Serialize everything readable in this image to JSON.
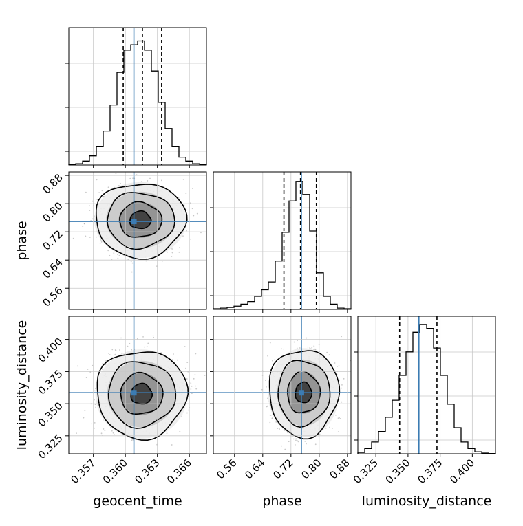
{
  "colors": {
    "truth": "#3c7cb3",
    "histogram": "#000000",
    "quantile": "#000000",
    "grid": "#c8c8c8",
    "points": "#8a8a8a",
    "density_dark": "#222222"
  },
  "chart_data": {
    "type": "corner",
    "parameters": [
      "geocent_time",
      "phase",
      "luminosity_distance"
    ],
    "axis_labels": {
      "geocent_time": "geocent_time",
      "phase": "phase",
      "luminosity_distance": "luminosity_distance"
    },
    "ranges": {
      "geocent_time": [
        0.3547,
        0.3676
      ],
      "phase": [
        0.5,
        0.89
      ],
      "luminosity_distance": [
        0.311,
        0.418
      ]
    },
    "ticks": {
      "geocent_time": [
        "0.357",
        "0.360",
        "0.363",
        "0.366"
      ],
      "phase": [
        "0.56",
        "0.64",
        "0.72",
        "0.80",
        "0.88"
      ],
      "luminosity_distance": [
        "0.325",
        "0.350",
        "0.375",
        "0.400"
      ]
    },
    "truths": {
      "geocent_time": 0.3608,
      "phase": 0.7495,
      "luminosity_distance": 0.3585
    },
    "quantiles": {
      "geocent_time": [
        0.3598,
        0.3616,
        0.3634
      ],
      "phase": [
        0.7,
        0.747,
        0.792
      ],
      "luminosity_distance": [
        0.3435,
        0.358,
        0.3725
      ]
    },
    "histograms": {
      "geocent_time": {
        "edges": [
          0.3547,
          0.355345,
          0.35599,
          0.356635,
          0.35728,
          0.357925,
          0.35857,
          0.359215,
          0.35986,
          0.360505,
          0.36115,
          0.361795,
          0.36244,
          0.363085,
          0.36373,
          0.364375,
          0.36502,
          0.365665,
          0.36631,
          0.366955,
          0.3676
        ],
        "counts": [
          0.005,
          0.01,
          0.03,
          0.07,
          0.14,
          0.26,
          0.46,
          0.71,
          0.88,
          0.92,
          0.95,
          0.88,
          0.72,
          0.48,
          0.28,
          0.14,
          0.06,
          0.03,
          0.01,
          0.005
        ]
      },
      "phase": {
        "edges": [
          0.5,
          0.5195,
          0.539,
          0.5585,
          0.578,
          0.5975,
          0.617,
          0.6365,
          0.656,
          0.6755,
          0.695,
          0.7145,
          0.734,
          0.7535,
          0.773,
          0.7925,
          0.812,
          0.8315,
          0.851,
          0.8705,
          0.89
        ],
        "counts": [
          0.005,
          0.01,
          0.015,
          0.025,
          0.04,
          0.06,
          0.1,
          0.15,
          0.21,
          0.37,
          0.59,
          0.83,
          0.98,
          0.88,
          0.6,
          0.28,
          0.1,
          0.04,
          0.01,
          0.005
        ]
      },
      "luminosity_distance": {
        "edges": [
          0.311,
          0.31635,
          0.3217,
          0.32705,
          0.3324,
          0.33775,
          0.3431,
          0.34845,
          0.3538,
          0.35915,
          0.3645,
          0.36985,
          0.3752,
          0.38055,
          0.3859,
          0.39125,
          0.3966,
          0.40195,
          0.4073,
          0.41265,
          0.418
        ],
        "counts": [
          0.01,
          0.04,
          0.09,
          0.17,
          0.28,
          0.41,
          0.6,
          0.78,
          0.93,
          0.99,
          0.96,
          0.81,
          0.6,
          0.38,
          0.2,
          0.09,
          0.04,
          0.015,
          0.005,
          0.002
        ]
      }
    },
    "pairs": [
      {
        "x": "geocent_time",
        "y": "phase",
        "center": [
          0.3614,
          0.7535
        ],
        "sigma": [
          0.0018,
          0.045
        ],
        "contours_sigma_scale": [
          0.55,
          1.1,
          1.75,
          2.35
        ]
      },
      {
        "x": "geocent_time",
        "y": "luminosity_distance",
        "center": [
          0.3615,
          0.3575
        ],
        "sigma": [
          0.0018,
          0.0145
        ],
        "contours_sigma_scale": [
          0.55,
          1.1,
          1.75,
          2.35
        ]
      },
      {
        "x": "phase",
        "y": "luminosity_distance",
        "center": [
          0.7555,
          0.3585
        ],
        "sigma": [
          0.042,
          0.0145
        ],
        "contours_sigma_scale": [
          0.55,
          1.1,
          1.75,
          2.35
        ]
      }
    ],
    "grid": true
  }
}
